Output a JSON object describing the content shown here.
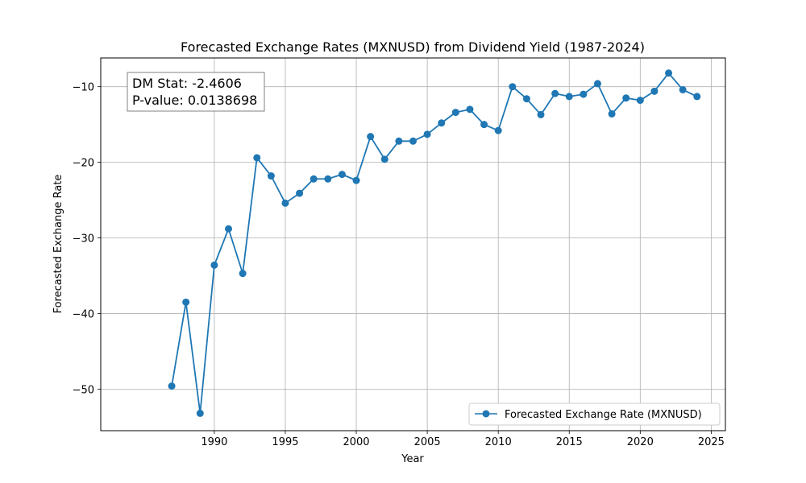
{
  "chart_data": {
    "type": "line",
    "title": "Forecasted Exchange Rates (MXNUSD) from Dividend Yield (1987-2024)",
    "xlabel": "Year",
    "ylabel": "Forecasted Exchange Rate",
    "xlim": [
      1982,
      2026
    ],
    "ylim": [
      -55.5,
      -6.2
    ],
    "xticks": [
      1990,
      1995,
      2000,
      2005,
      2010,
      2015,
      2020,
      2025
    ],
    "yticks": [
      -50,
      -40,
      -30,
      -20,
      -10
    ],
    "ytick_labels": [
      "−50",
      "−40",
      "−30",
      "−20",
      "−10"
    ],
    "grid": true,
    "legend_position": "lower-right",
    "x": [
      1987,
      1988,
      1989,
      1990,
      1991,
      1992,
      1993,
      1994,
      1995,
      1996,
      1997,
      1998,
      1999,
      2000,
      2001,
      2002,
      2003,
      2004,
      2005,
      2006,
      2007,
      2008,
      2009,
      2010,
      2011,
      2012,
      2013,
      2014,
      2015,
      2016,
      2017,
      2018,
      2019,
      2020,
      2021,
      2022,
      2023,
      2024
    ],
    "series": [
      {
        "name": "Forecasted Exchange Rate (MXNUSD)",
        "color": "#1f77b4",
        "values": [
          -49.6,
          -38.5,
          -53.2,
          -33.6,
          -28.8,
          -34.7,
          -19.4,
          -21.8,
          -25.4,
          -24.1,
          -22.2,
          -22.2,
          -21.6,
          -22.4,
          -16.6,
          -19.6,
          -17.2,
          -17.2,
          -16.3,
          -14.8,
          -13.4,
          -13.0,
          -15.0,
          -15.8,
          -10.0,
          -11.6,
          -13.7,
          -10.9,
          -11.3,
          -11.0,
          -9.6,
          -13.6,
          -11.5,
          -11.8,
          -10.6,
          -8.2,
          -10.4,
          -11.3
        ]
      }
    ],
    "annotation": {
      "lines": [
        "DM Stat: -2.4606",
        "P-value: 0.0138698"
      ]
    }
  }
}
